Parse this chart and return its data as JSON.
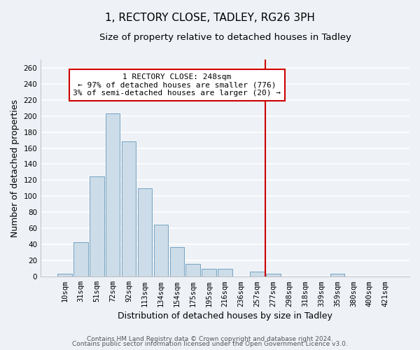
{
  "title": "1, RECTORY CLOSE, TADLEY, RG26 3PH",
  "subtitle": "Size of property relative to detached houses in Tadley",
  "xlabel": "Distribution of detached houses by size in Tadley",
  "ylabel": "Number of detached properties",
  "bar_labels": [
    "10sqm",
    "31sqm",
    "51sqm",
    "72sqm",
    "92sqm",
    "113sqm",
    "134sqm",
    "154sqm",
    "175sqm",
    "195sqm",
    "216sqm",
    "236sqm",
    "257sqm",
    "277sqm",
    "298sqm",
    "318sqm",
    "339sqm",
    "359sqm",
    "380sqm",
    "400sqm",
    "421sqm"
  ],
  "bar_values": [
    4,
    43,
    125,
    203,
    168,
    110,
    65,
    37,
    16,
    10,
    10,
    0,
    6,
    4,
    0,
    0,
    0,
    4,
    0,
    0,
    0
  ],
  "bar_color": "#ccdce8",
  "bar_edge_color": "#6699bb",
  "vline_x_index": 12,
  "vline_color": "#cc0000",
  "annotation_title": "1 RECTORY CLOSE: 248sqm",
  "annotation_line1": "← 97% of detached houses are smaller (776)",
  "annotation_line2": "3% of semi-detached houses are larger (20) →",
  "annotation_box_color": "#ffffff",
  "annotation_box_edge": "#cc0000",
  "ylim": [
    0,
    270
  ],
  "yticks": [
    0,
    20,
    40,
    60,
    80,
    100,
    120,
    140,
    160,
    180,
    200,
    220,
    240,
    260
  ],
  "footer1": "Contains HM Land Registry data © Crown copyright and database right 2024.",
  "footer2": "Contains public sector information licensed under the Open Government Licence v3.0.",
  "bg_color": "#eef2f7",
  "grid_color": "#ffffff",
  "title_fontsize": 11,
  "subtitle_fontsize": 9.5,
  "axis_label_fontsize": 9,
  "tick_fontsize": 7.5,
  "footer_fontsize": 6.5,
  "annotation_fontsize": 8
}
